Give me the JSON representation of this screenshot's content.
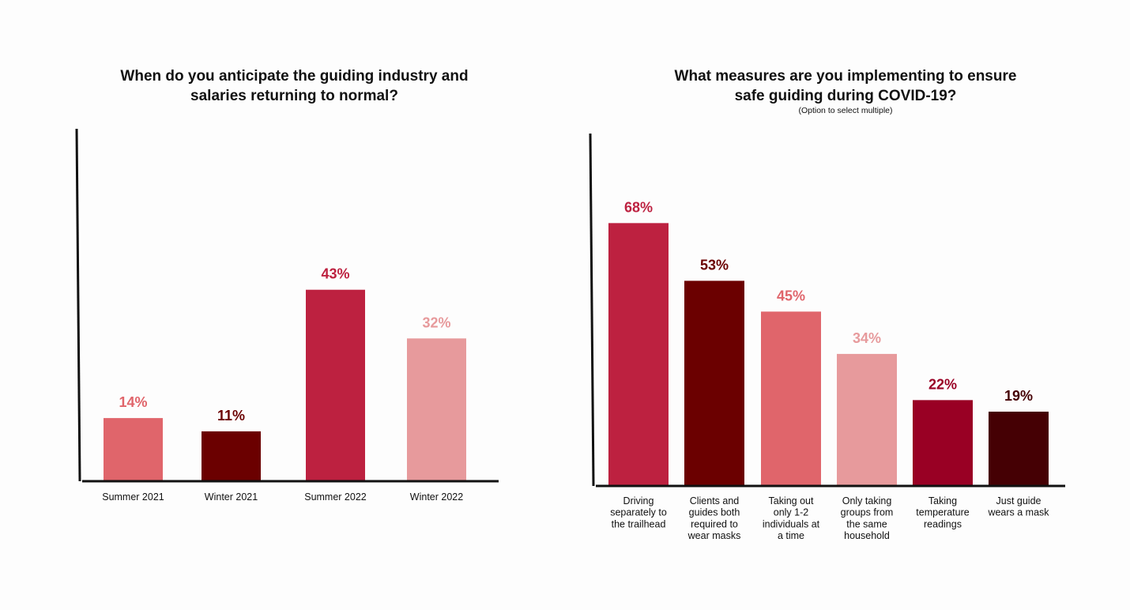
{
  "chart_data": [
    {
      "type": "bar",
      "title": "When do you anticipate the guiding industry and salaries returning to normal?",
      "subtitle": "",
      "categories": [
        "Summer 2021",
        "Winter 2021",
        "Summer 2022",
        "Winter 2022"
      ],
      "values": [
        14,
        11,
        43,
        32
      ],
      "value_labels": [
        "14%",
        "11%",
        "43%",
        "32%"
      ],
      "colors": [
        "#e0656b",
        "#6b0000",
        "#bd2140",
        "#e79a9c"
      ],
      "unit": "%",
      "ylim": [
        0,
        100
      ],
      "grid": false,
      "legend": "none"
    },
    {
      "type": "bar",
      "title": "What measures are you implementing to ensure safe guiding during COVID-19?",
      "subtitle": "(Option to select multiple)",
      "categories": [
        "Driving separately to the trailhead",
        "Clients and guides both required to wear masks",
        "Taking out only 1-2 individuals at a time",
        "Only taking groups from the same household",
        "Taking temperature readings",
        "Just guide wears a mask"
      ],
      "values": [
        68,
        53,
        45,
        34,
        22,
        19
      ],
      "value_labels": [
        "68%",
        "53%",
        "45%",
        "34%",
        "22%",
        "19%"
      ],
      "colors": [
        "#bd2140",
        "#6b0000",
        "#e0656b",
        "#e79a9c",
        "#990024",
        "#450004"
      ],
      "unit": "%",
      "ylim": [
        0,
        85
      ],
      "grid": false,
      "legend": "none"
    }
  ]
}
